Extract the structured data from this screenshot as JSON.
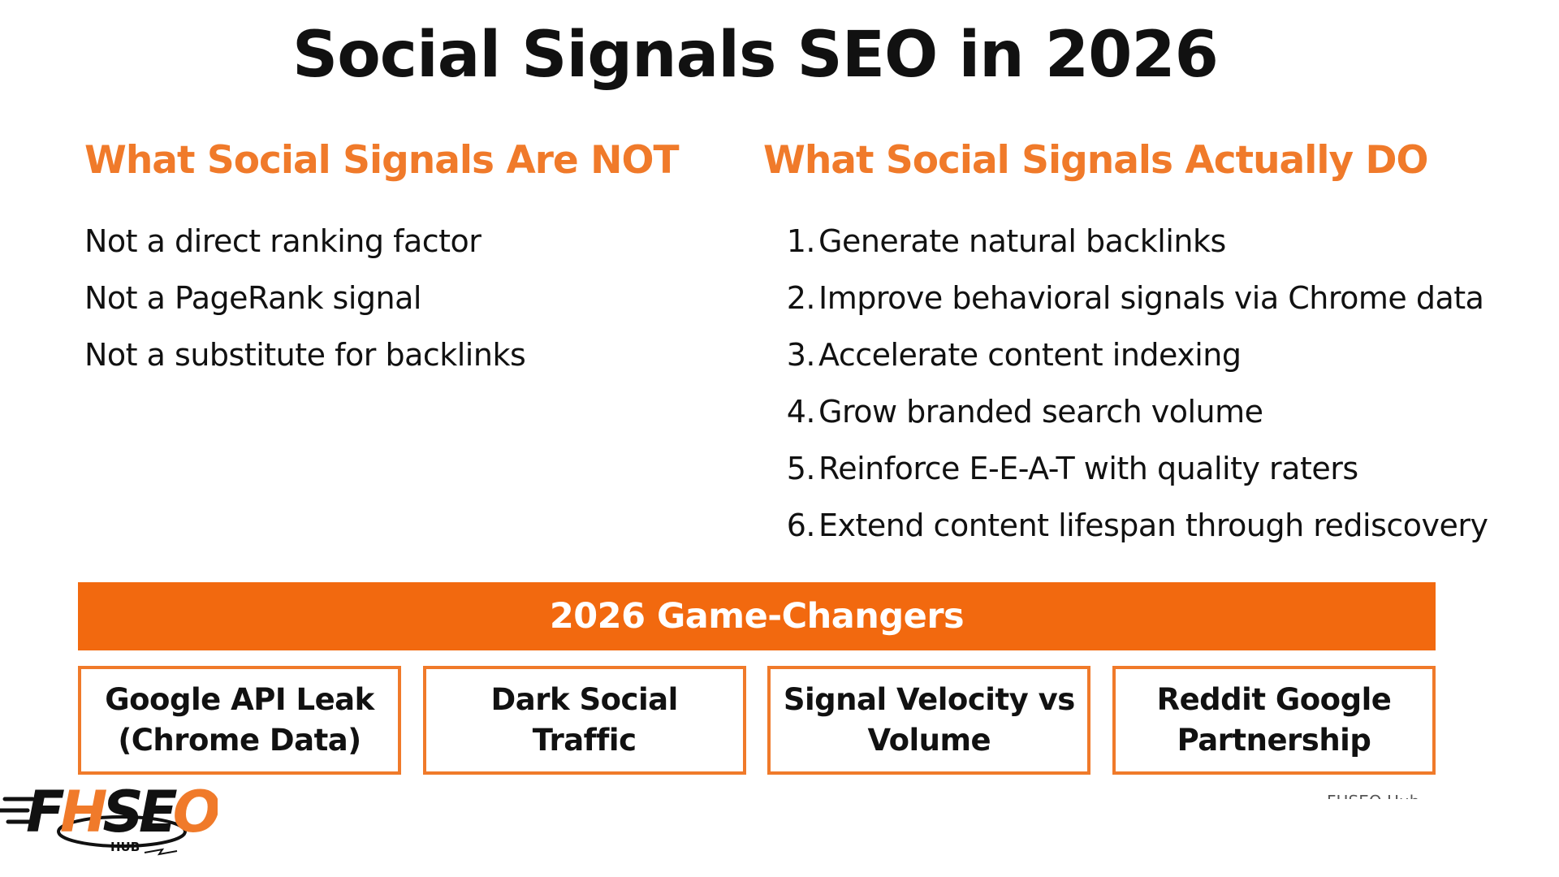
{
  "title": "Social Signals SEO in 2026",
  "left_column": {
    "heading": "What Social Signals Are NOT",
    "items": [
      "Not a direct ranking factor",
      "Not a PageRank signal",
      "Not a substitute for backlinks"
    ]
  },
  "right_column": {
    "heading": "What Social Signals Actually DO",
    "items": [
      {
        "num": "1.",
        "text": "Generate natural backlinks"
      },
      {
        "num": "2.",
        "text": "Improve behavioral signals via Chrome data"
      },
      {
        "num": "3.",
        "text": "Accelerate content indexing"
      },
      {
        "num": "4.",
        "text": "Grow branded search volume"
      },
      {
        "num": "5.",
        "text": "Reinforce E-E-A-T with quality raters"
      },
      {
        "num": "6.",
        "text": "Extend content lifespan through rediscovery"
      }
    ]
  },
  "banner": {
    "title": "2026 Game-Changers"
  },
  "cards": [
    {
      "label": "Google API Leak (Chrome Data)"
    },
    {
      "label": "Dark Social Traffic"
    },
    {
      "label": "Signal Velocity vs Volume"
    },
    {
      "label": "Reddit Google Partnership"
    }
  ],
  "watermark": "FHSEO Hub",
  "logo": {
    "icon": "fhseo-hub-logo",
    "letters": "FHSEO",
    "sub": "HUB"
  },
  "colors": {
    "accent": "#F07A2A",
    "banner": "#F2690F",
    "text": "#111111",
    "background": "#FFFFFF"
  }
}
